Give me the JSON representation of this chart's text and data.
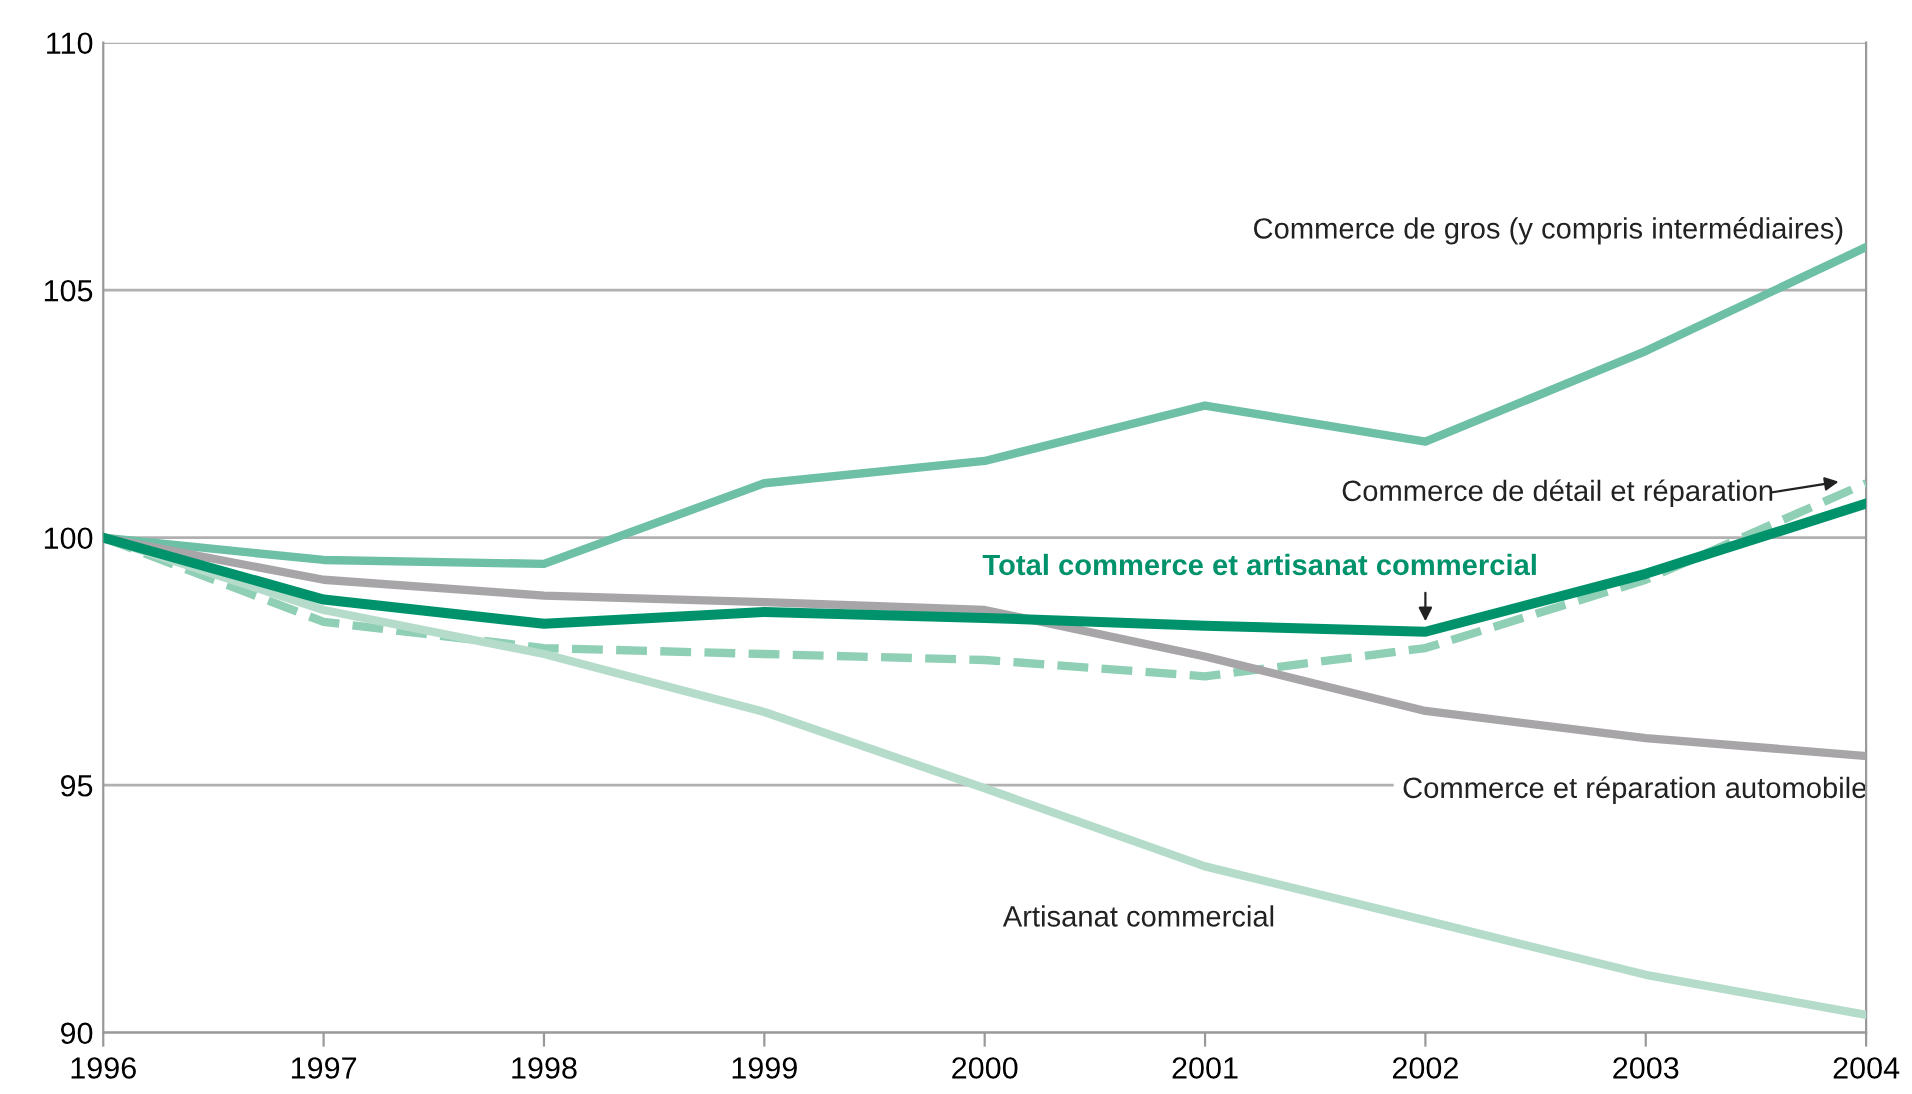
{
  "chart_data": {
    "type": "line",
    "x": [
      1996,
      1997,
      1998,
      1999,
      2000,
      2001,
      2002,
      2003,
      2004
    ],
    "series": [
      {
        "name": "Commerce de gros (y compris intermédiaires)",
        "color": "#6dbfa5",
        "values": [
          100,
          99.55,
          99.47,
          101.1,
          101.55,
          102.67,
          101.94,
          103.77,
          105.87
        ]
      },
      {
        "name": "Commerce de détail et réparation",
        "color": "#8fcfb5",
        "line_style": "dashed",
        "values": [
          100,
          98.3,
          97.77,
          97.65,
          97.53,
          97.2,
          97.77,
          99.15,
          101.1
        ]
      },
      {
        "name": "Commerce et réparation automobile",
        "color": "#a7a5a8",
        "values": [
          100,
          99.15,
          98.83,
          98.7,
          98.54,
          97.6,
          96.5,
          95.95,
          95.59
        ]
      },
      {
        "name": "Artisanat commercial",
        "color": "#b5dccb",
        "values": [
          100,
          98.54,
          97.65,
          96.48,
          94.94,
          93.36,
          92.27,
          91.17,
          90.36
        ]
      },
      {
        "name": "Total commerce et artisanat commercial",
        "color": "#00936b",
        "values": [
          100,
          98.75,
          98.26,
          98.5,
          98.38,
          98.22,
          98.1,
          99.27,
          100.69
        ]
      }
    ],
    "xlim": [
      1996,
      2004
    ],
    "xticks": [
      1996,
      1997,
      1998,
      1999,
      2000,
      2001,
      2002,
      2003,
      2004
    ],
    "ylim": [
      90,
      110
    ],
    "yticks": [
      90,
      95,
      100,
      105,
      110
    ],
    "grid": "y",
    "legend": false,
    "marker": "none",
    "line_style": "solid"
  }
}
